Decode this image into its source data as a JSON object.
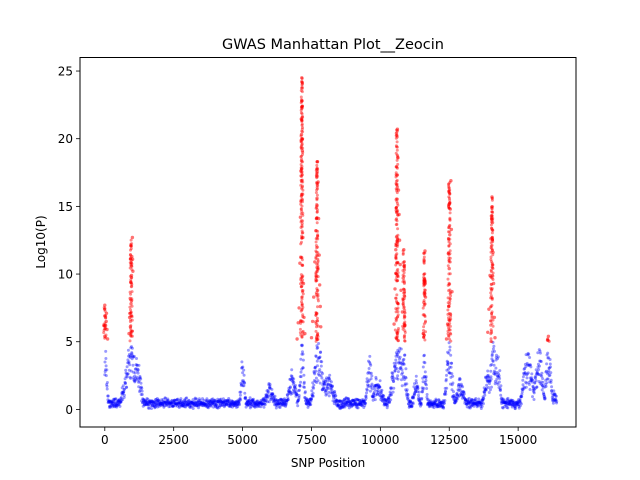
{
  "chart_data": {
    "type": "scatter",
    "title": "GWAS Manhattan Plot__Zeocin",
    "xlabel": "SNP Position",
    "ylabel": "Log10(P)",
    "xlim": [
      -900,
      17100
    ],
    "ylim": [
      -1.3,
      26.0
    ],
    "xticks": [
      0,
      2500,
      5000,
      7500,
      10000,
      12500,
      15000
    ],
    "yticks": [
      0,
      5,
      10,
      15,
      20,
      25
    ],
    "threshold": 5,
    "grid": false,
    "legend": "none",
    "colors": {
      "below_threshold": "#0000ff",
      "above_threshold": "#ff0000"
    },
    "point_alpha": 0.4,
    "peaks": [
      {
        "x": 0,
        "peak": 7.7
      },
      {
        "x": 950,
        "peak": 12.7
      },
      {
        "x": 5000,
        "peak": 4.6
      },
      {
        "x": 7150,
        "peak": 24.5
      },
      {
        "x": 7700,
        "peak": 18.3
      },
      {
        "x": 10600,
        "peak": 20.7
      },
      {
        "x": 10850,
        "peak": 11.8
      },
      {
        "x": 11600,
        "peak": 11.7
      },
      {
        "x": 12500,
        "peak": 16.9
      },
      {
        "x": 14050,
        "peak": 15.7
      },
      {
        "x": 16100,
        "peak": 5.4
      }
    ],
    "series": [
      {
        "points": [
          [
            0,
            5.4
          ],
          [
            0,
            7.7
          ],
          [
            0,
            6.9
          ],
          [
            50,
            6.5
          ],
          [
            80,
            5.9
          ],
          [
            100,
            5.2
          ],
          [
            30,
            6.2
          ],
          [
            60,
            7.1
          ],
          [
            880,
            5.6
          ],
          [
            900,
            6.8
          ],
          [
            920,
            8.2
          ],
          [
            940,
            9.4
          ],
          [
            960,
            10.6
          ],
          [
            980,
            11.3
          ],
          [
            1000,
            12.7
          ],
          [
            1010,
            11.1
          ],
          [
            970,
            9.9
          ],
          [
            950,
            7.8
          ],
          [
            1020,
            10.2
          ],
          [
            930,
            6.1
          ],
          [
            6980,
            5.2
          ],
          [
            7020,
            6.4
          ],
          [
            7050,
            7.5
          ],
          [
            7080,
            10.8
          ],
          [
            7100,
            14.2
          ],
          [
            7120,
            17.6
          ],
          [
            7140,
            20.3
          ],
          [
            7150,
            24.5
          ],
          [
            7160,
            22.8
          ],
          [
            7170,
            19.1
          ],
          [
            7180,
            15.9
          ],
          [
            7190,
            12.7
          ],
          [
            7210,
            9.3
          ],
          [
            7230,
            6.8
          ],
          [
            7260,
            5.6
          ],
          [
            7500,
            5.3
          ],
          [
            7540,
            6.5
          ],
          [
            7580,
            8.3
          ],
          [
            7620,
            10.9
          ],
          [
            7660,
            13.2
          ],
          [
            7700,
            15.6
          ],
          [
            7720,
            18.3
          ],
          [
            7740,
            16.8
          ],
          [
            7760,
            14.1
          ],
          [
            7780,
            11.4
          ],
          [
            7800,
            9.2
          ],
          [
            7820,
            7.6
          ],
          [
            7840,
            6.1
          ],
          [
            10500,
            6.3
          ],
          [
            10530,
            8.9
          ],
          [
            10560,
            11.8
          ],
          [
            10580,
            14.7
          ],
          [
            10600,
            17.3
          ],
          [
            10620,
            20.7
          ],
          [
            10640,
            18.6
          ],
          [
            10660,
            16.2
          ],
          [
            10680,
            14.4
          ],
          [
            10700,
            12.5
          ],
          [
            10720,
            10.7
          ],
          [
            10750,
            8.8
          ],
          [
            10800,
            7.2
          ],
          [
            10830,
            9.7
          ],
          [
            10850,
            11.8
          ],
          [
            10870,
            8.4
          ],
          [
            10890,
            6.2
          ],
          [
            11560,
            5.6
          ],
          [
            11580,
            7.9
          ],
          [
            11600,
            9.6
          ],
          [
            11620,
            11.7
          ],
          [
            11640,
            8.3
          ],
          [
            12400,
            5.2
          ],
          [
            12440,
            6.3
          ],
          [
            12480,
            7.6
          ],
          [
            12500,
            10.4
          ],
          [
            12520,
            12.9
          ],
          [
            12540,
            14.8
          ],
          [
            12560,
            16.9
          ],
          [
            12580,
            13.3
          ],
          [
            12600,
            8.7
          ],
          [
            13900,
            5.7
          ],
          [
            13940,
            7.4
          ],
          [
            13980,
            9.9
          ],
          [
            14010,
            12.6
          ],
          [
            14030,
            14.3
          ],
          [
            14050,
            15.7
          ],
          [
            14070,
            13.8
          ],
          [
            14090,
            11.6
          ],
          [
            14110,
            9.3
          ],
          [
            14140,
            6.8
          ],
          [
            14160,
            5.3
          ],
          [
            16080,
            5.1
          ],
          [
            16100,
            5.4
          ]
        ]
      }
    ]
  }
}
